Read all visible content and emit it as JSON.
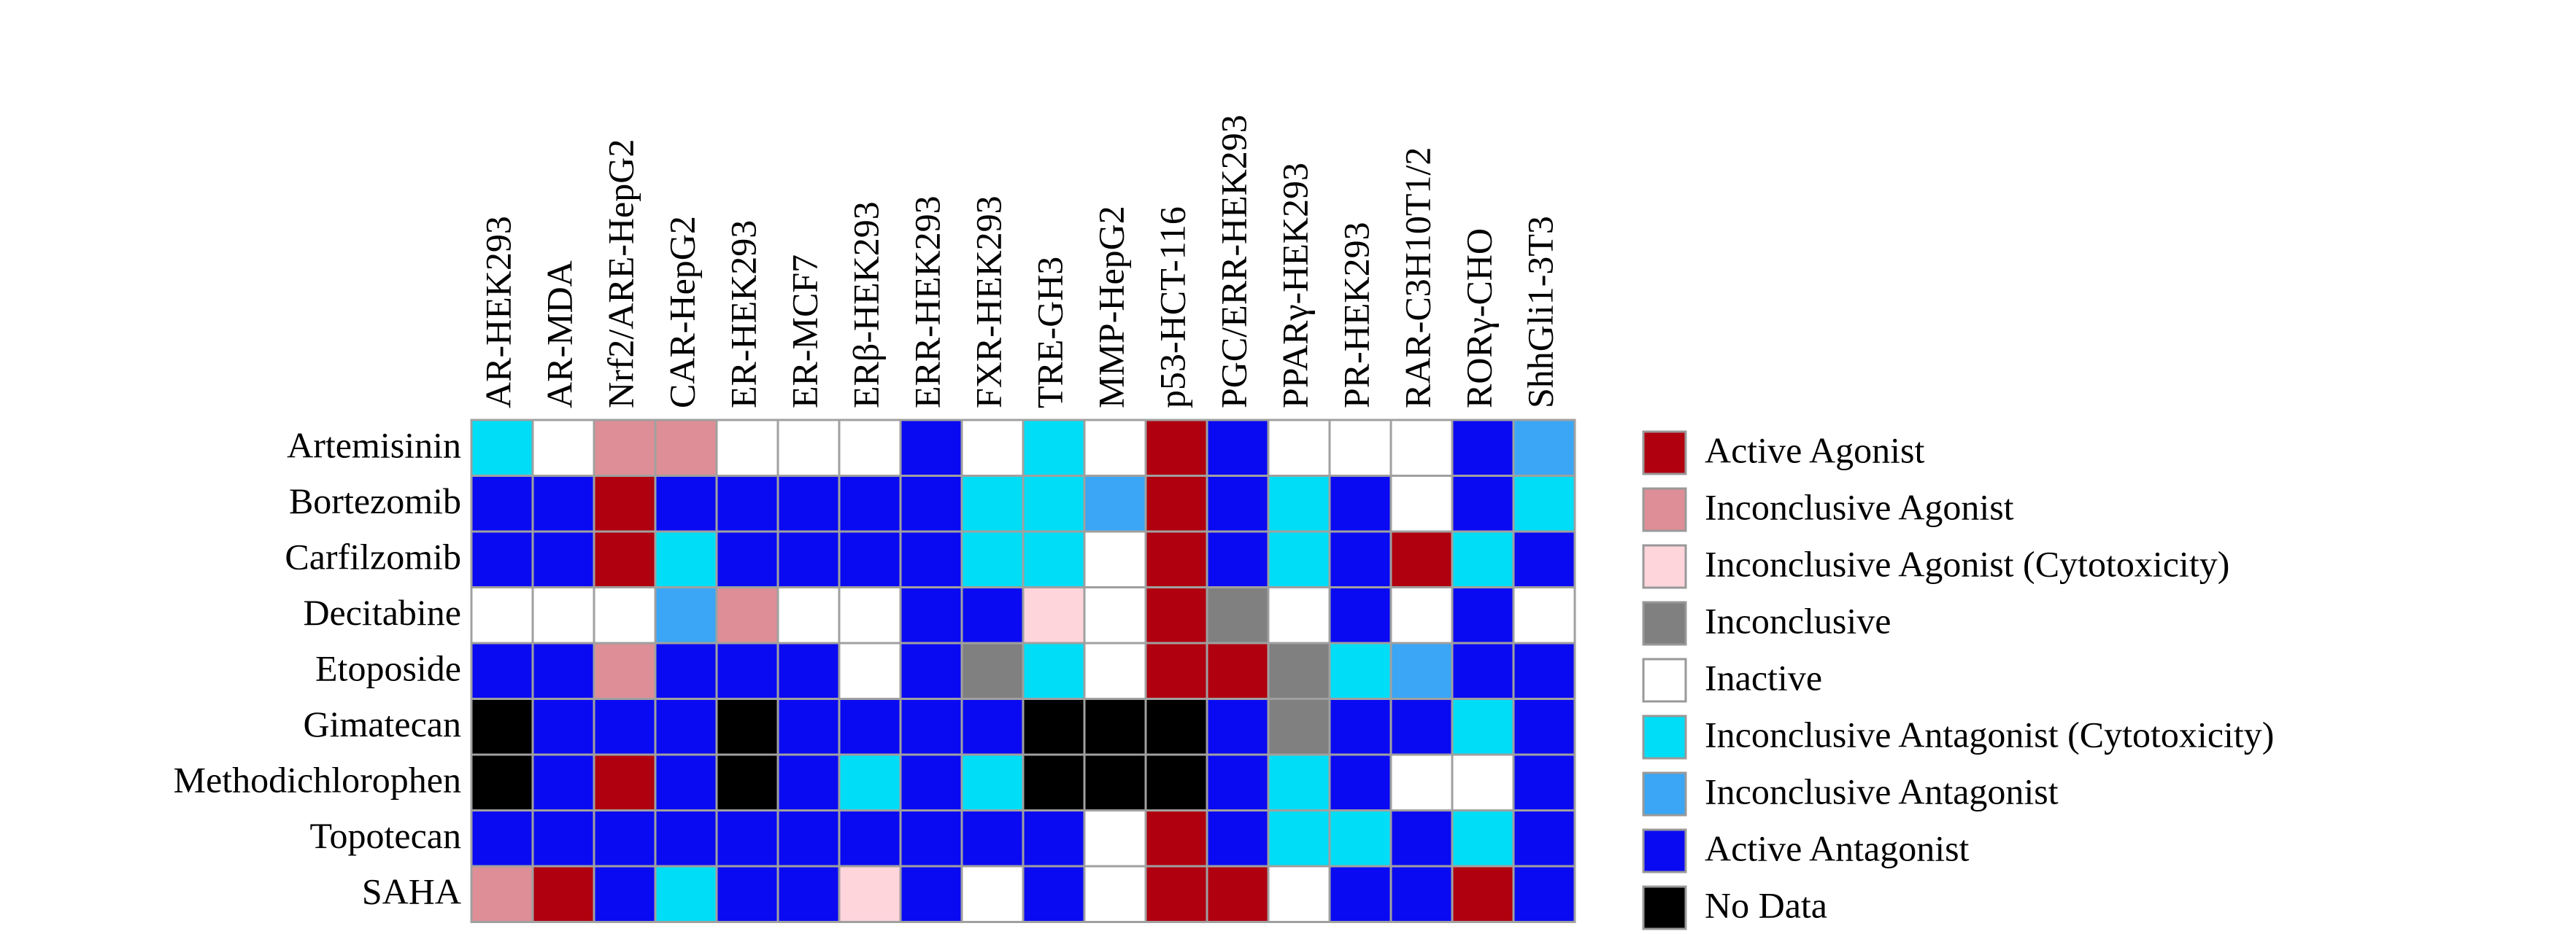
{
  "chart_data": {
    "type": "heatmap",
    "columns": [
      "AR-HEK293",
      "AR-MDA",
      "Nrf2/ARE-HepG2",
      "CAR-HepG2",
      "ER-HEK293",
      "ER-MCF7",
      "ERβ-HEK293",
      "ERR-HEK293",
      "FXR-HEK293",
      "TRE-GH3",
      "MMP-HepG2",
      "p53-HCT-116",
      "PGC/ERR-HEK293",
      "PPARγ-HEK293",
      "PR-HEK293",
      "RAR-C3H10T1/2",
      "RORγ-CHO",
      "ShhGli1-3T3"
    ],
    "rows": [
      "Artemisinin",
      "Bortezomib",
      "Carfilzomib",
      "Decitabine",
      "Etoposide",
      "Gimatecan",
      "Methodichlorophen",
      "Topotecan",
      "SAHA"
    ],
    "legend": [
      {
        "name": "Active Agonist",
        "color": "#b0000f"
      },
      {
        "name": "Inconclusive Agonist",
        "color": "#de8e96"
      },
      {
        "name": "Inconclusive Agonist (Cytotoxicity)",
        "color": "#ffd5dc"
      },
      {
        "name": "Inconclusive",
        "color": "#808080"
      },
      {
        "name": "Inactive",
        "color": "#ffffff"
      },
      {
        "name": "Inconclusive Antagonist (Cytotoxicity)",
        "color": "#00ddf6"
      },
      {
        "name": "Inconclusive Antagonist",
        "color": "#3aa6f5"
      },
      {
        "name": "Active Antagonist",
        "color": "#0a0af2"
      },
      {
        "name": "No Data",
        "color": "#000000"
      }
    ],
    "values": [
      [
        5,
        4,
        1,
        1,
        4,
        4,
        4,
        7,
        4,
        5,
        4,
        0,
        7,
        4,
        4,
        4,
        7,
        6
      ],
      [
        7,
        7,
        0,
        7,
        7,
        7,
        7,
        7,
        5,
        5,
        6,
        0,
        7,
        5,
        7,
        4,
        7,
        5
      ],
      [
        7,
        7,
        0,
        5,
        7,
        7,
        7,
        7,
        5,
        5,
        4,
        0,
        7,
        5,
        7,
        0,
        5,
        7
      ],
      [
        4,
        4,
        4,
        6,
        1,
        4,
        4,
        7,
        7,
        2,
        4,
        0,
        3,
        4,
        7,
        4,
        7,
        4
      ],
      [
        7,
        7,
        1,
        7,
        7,
        7,
        4,
        7,
        3,
        5,
        4,
        0,
        0,
        3,
        5,
        6,
        7,
        7
      ],
      [
        8,
        7,
        7,
        7,
        8,
        7,
        7,
        7,
        7,
        8,
        8,
        8,
        7,
        3,
        7,
        7,
        5,
        7
      ],
      [
        8,
        7,
        0,
        7,
        8,
        7,
        5,
        7,
        5,
        8,
        8,
        8,
        7,
        5,
        7,
        4,
        4,
        7
      ],
      [
        7,
        7,
        7,
        7,
        7,
        7,
        7,
        7,
        7,
        7,
        4,
        0,
        7,
        5,
        5,
        7,
        5,
        7
      ],
      [
        1,
        0,
        7,
        5,
        7,
        7,
        2,
        7,
        4,
        7,
        4,
        0,
        0,
        4,
        7,
        7,
        0,
        7
      ]
    ]
  }
}
